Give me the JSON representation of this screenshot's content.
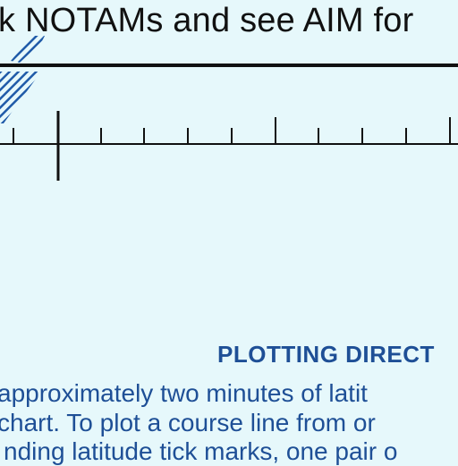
{
  "chart_header": {
    "notice_text": "k NOTAMs and see AIM for"
  },
  "plotting_directions": {
    "heading": "PLOTTING DIRECT",
    "lines": [
      "approximately two minutes of latit",
      "chart. To plot a course line from or",
      "nding latitude tick marks, one pair o"
    ]
  },
  "colors": {
    "background": "#e6f8fb",
    "ink": "#111111",
    "blue_text": "#1e4f96",
    "hatch": "#1f5aa8"
  }
}
